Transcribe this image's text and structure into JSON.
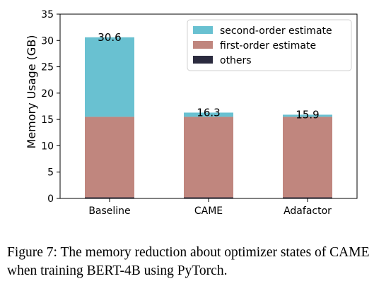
{
  "chart_data": {
    "type": "bar",
    "stacked": true,
    "categories": [
      "Baseline",
      "CAME",
      "Adafactor"
    ],
    "series": [
      {
        "name": "others",
        "color": "#2b2b3f",
        "values": [
          0.2,
          0.2,
          0.2
        ]
      },
      {
        "name": "first-order estimate",
        "color": "#c0867e",
        "values": [
          15.3,
          15.3,
          15.3
        ]
      },
      {
        "name": "second-order estimate",
        "color": "#69c1d1",
        "values": [
          15.1,
          0.8,
          0.4
        ]
      }
    ],
    "legend_order": [
      "second-order estimate",
      "first-order estimate",
      "others"
    ],
    "totals": [
      "30.6",
      "16.3",
      "15.9"
    ],
    "ylabel": "Memory Usage (GB)",
    "ylim": [
      0,
      35
    ],
    "yticks": [
      0,
      5,
      10,
      15,
      20,
      25,
      30,
      35
    ],
    "grid": false,
    "legend_position": "top-right"
  },
  "caption": "Figure 7: The memory reduction about optimizer states of CAME when training BERT-4B using PyTorch."
}
